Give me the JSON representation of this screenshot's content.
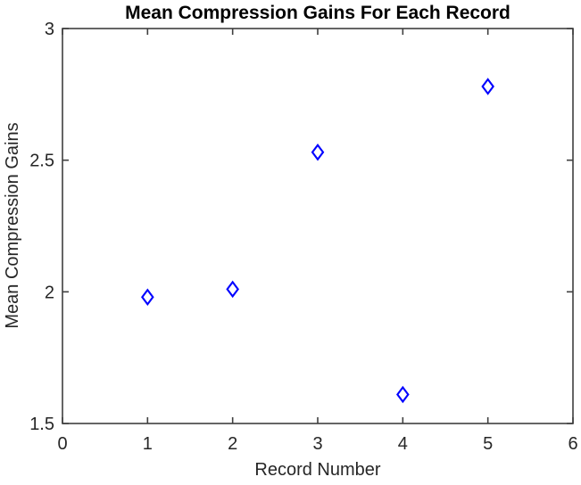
{
  "chart_data": {
    "type": "scatter",
    "title": "Mean Compression Gains For Each Record",
    "xlabel": "Record Number",
    "ylabel": "Mean Compression Gains",
    "x": [
      1,
      2,
      3,
      4,
      5
    ],
    "y": [
      1.98,
      2.01,
      2.53,
      1.61,
      2.78
    ],
    "xlim": [
      0,
      6
    ],
    "ylim": [
      1.5,
      3
    ],
    "xticks": [
      0,
      1,
      2,
      3,
      4,
      5,
      6
    ],
    "xtick_labels": [
      "0",
      "1",
      "2",
      "3",
      "4",
      "5",
      "6"
    ],
    "yticks": [
      1.5,
      2,
      2.5,
      3
    ],
    "ytick_labels": [
      "1.5",
      "2",
      "2.5",
      "3"
    ],
    "grid": false,
    "legend": "none",
    "box": true,
    "marker": "diamond-open",
    "marker_color": "#0000ff",
    "axis_color": "#3f3f3f",
    "text_color": "#262626",
    "title_color": "#000000",
    "background": "#ffffff"
  }
}
